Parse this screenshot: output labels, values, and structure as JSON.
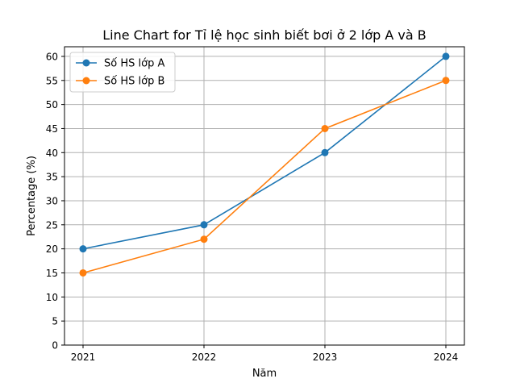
{
  "chart_data": {
    "type": "line",
    "title": "Line Chart for Tỉ lệ học sinh biết bơi ở 2 lớp A và B",
    "xlabel": "Năm",
    "ylabel": "Percentage (%)",
    "x": [
      "2021",
      "2022",
      "2023",
      "2024"
    ],
    "ylim": [
      0,
      62
    ],
    "yticks": [
      "0",
      "5",
      "10",
      "15",
      "20",
      "25",
      "30",
      "35",
      "40",
      "45",
      "50",
      "55",
      "60"
    ],
    "grid": true,
    "legend_position": "top-left",
    "series": [
      {
        "name": "Số HS lớp A",
        "values": [
          20,
          25,
          40,
          60
        ],
        "color": "#1f77b4"
      },
      {
        "name": "Số HS lớp B",
        "values": [
          15,
          22,
          45,
          55
        ],
        "color": "#ff7f0e"
      }
    ]
  }
}
